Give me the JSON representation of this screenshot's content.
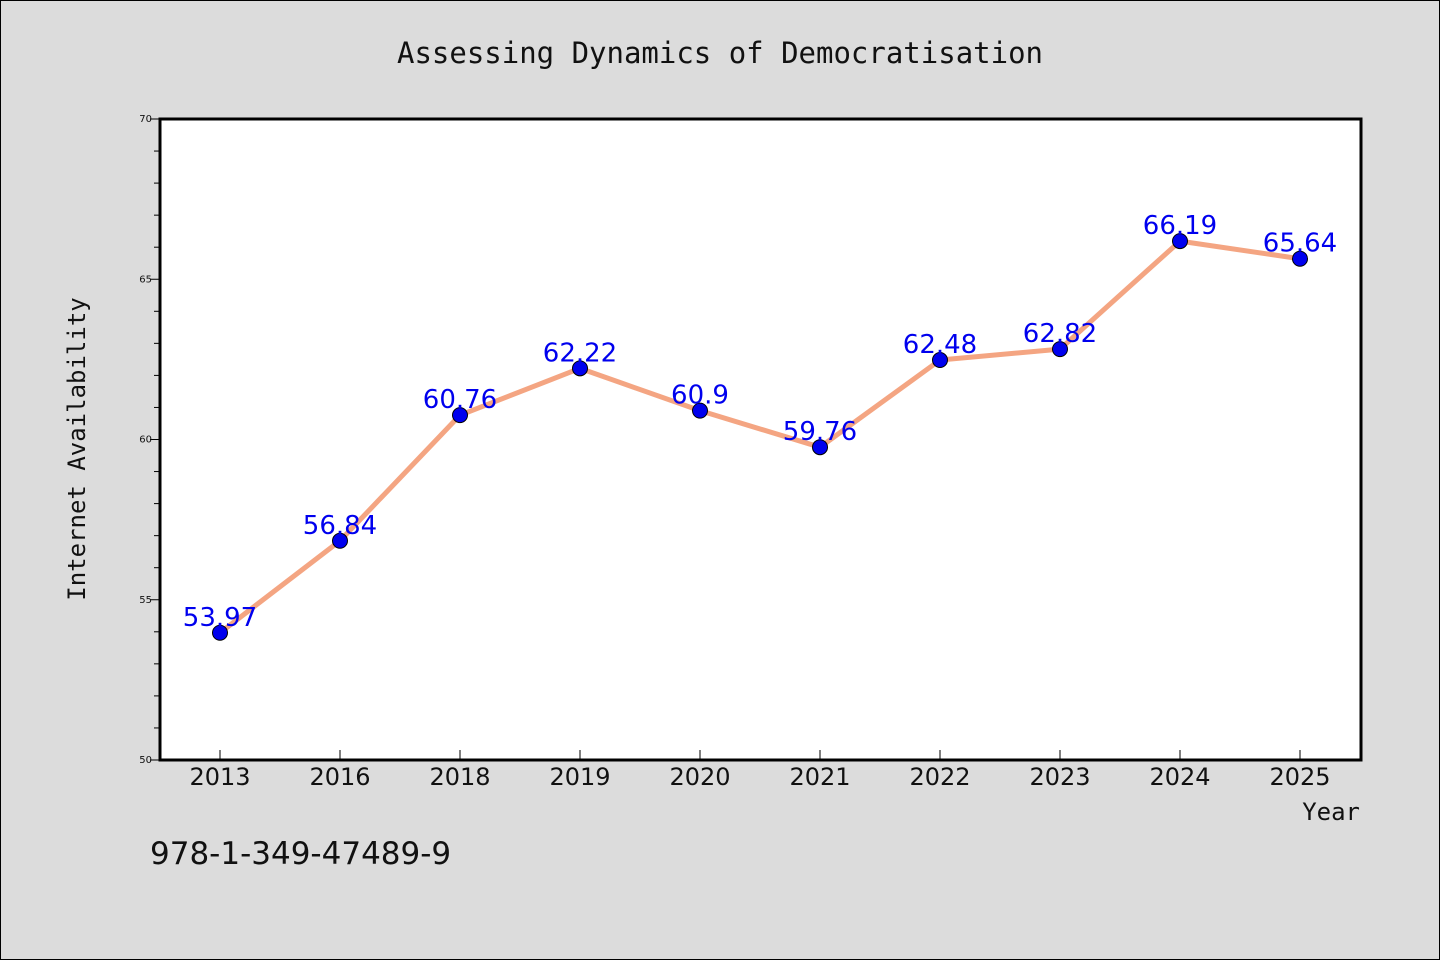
{
  "chart_data": {
    "type": "line",
    "title": "Assessing Dynamics of Democratisation",
    "xlabel": "Year",
    "ylabel": "Internet Availability",
    "categories": [
      "2013",
      "2016",
      "2018",
      "2019",
      "2020",
      "2021",
      "2022",
      "2023",
      "2024",
      "2025"
    ],
    "values": [
      53.97,
      56.84,
      60.76,
      62.22,
      60.9,
      59.76,
      62.48,
      62.82,
      66.19,
      65.64
    ],
    "data_labels": [
      "53.97",
      "56.84",
      "60.76",
      "62.22",
      "60.9",
      "59.76",
      "62.48",
      "62.82",
      "66.19",
      "65.64"
    ],
    "ylim": [
      50,
      70
    ],
    "yticks": [
      "50",
      "55",
      "60",
      "65",
      "70"
    ],
    "grid": false,
    "legend": "none",
    "line_color": "#f4a582",
    "marker_color": "#0000ee"
  },
  "footer": {
    "isbn": "978-1-349-47489-9"
  }
}
